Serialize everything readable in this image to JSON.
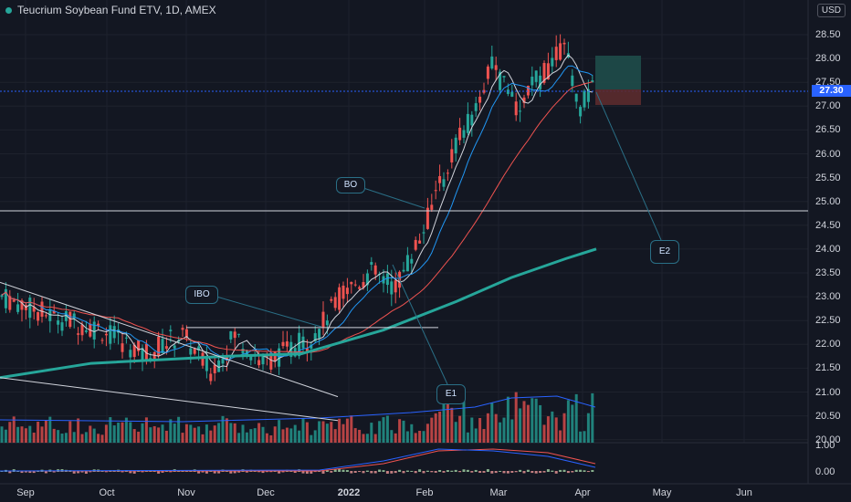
{
  "header": {
    "symbol_title": "Teucrium Soybean Fund ETV, 1D, AMEX",
    "currency": "USD"
  },
  "price_axis": {
    "ticks": [
      "28.50",
      "28.00",
      "27.50",
      "27.00",
      "26.50",
      "26.00",
      "25.50",
      "25.00",
      "24.50",
      "24.00",
      "23.50",
      "23.00",
      "22.50",
      "22.00",
      "21.50",
      "21.00",
      "20.50",
      "20.00"
    ],
    "last_price": "27.30"
  },
  "indicator_axis": {
    "ticks": [
      "1.00",
      "0.00"
    ]
  },
  "time_axis": {
    "labels": [
      "Sep",
      "Oct",
      "Nov",
      "Dec",
      "2022",
      "Feb",
      "Mar",
      "Apr",
      "May",
      "Jun"
    ]
  },
  "annotations": {
    "bo": "BO",
    "ibo": "IBO",
    "e1": "E1",
    "e2": "E2"
  },
  "colors": {
    "up": "#26a69a",
    "down": "#ef5350",
    "ma_fast": "#d1d4dc",
    "ma_mid": "#2196f3",
    "ma_slow": "#ef5350",
    "ma_long": "#26a69a",
    "last": "#2962ff"
  }
}
